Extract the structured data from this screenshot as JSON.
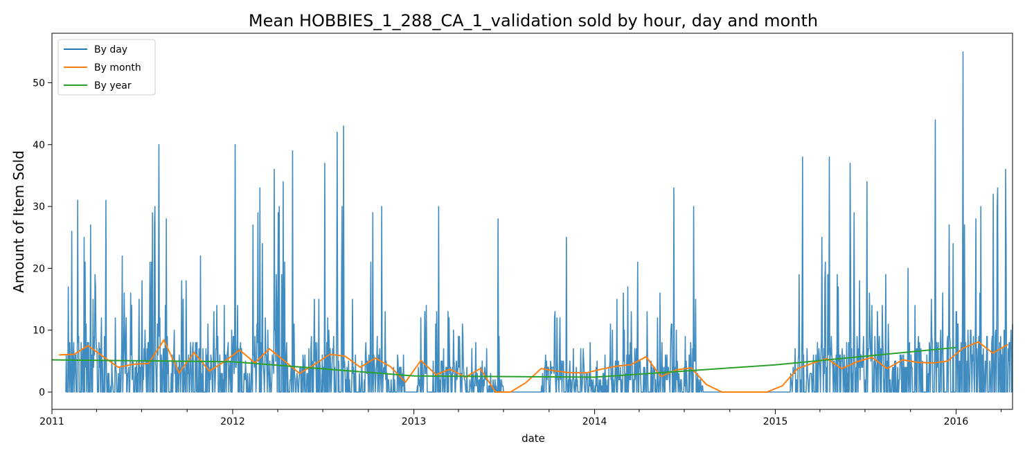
{
  "chart_data": {
    "type": "line",
    "title": "Mean HOBBIES_1_288_CA_1_validation sold by hour, day and month",
    "xlabel": "date",
    "ylabel": "Amount of Item Sold",
    "xlim": [
      "2011-01-01",
      "2016-04-24"
    ],
    "ylim": [
      -2.8,
      58
    ],
    "x_ticks": [
      "2011",
      "2012",
      "2013",
      "2014",
      "2015",
      "2016"
    ],
    "y_ticks": [
      0,
      10,
      20,
      30,
      40,
      50
    ],
    "grid": false,
    "legend": "top-left",
    "series": [
      {
        "name": "By day",
        "color": "#1f77b4",
        "sampling": "daily",
        "x": [
          "2011-01-29",
          "2011-02-15",
          "2011-03-01",
          "2011-03-20",
          "2011-04-10",
          "2011-05-01",
          "2011-05-25",
          "2011-06-20",
          "2011-07-15",
          "2011-08-10",
          "2011-09-05",
          "2011-10-01",
          "2011-10-28",
          "2011-11-25",
          "2011-12-20",
          "2012-01-03",
          "2012-01-25",
          "2012-02-20",
          "2012-03-14",
          "2012-04-05",
          "2012-04-20",
          "2012-05-10",
          "2012-06-05",
          "2012-06-28",
          "2012-07-20",
          "2012-08-03",
          "2012-08-25",
          "2012-09-20",
          "2012-10-12",
          "2012-11-03",
          "2012-11-30",
          "2012-12-10",
          "2013-01-01",
          "2013-01-25",
          "2013-02-20",
          "2013-03-25",
          "2013-04-25",
          "2013-05-20",
          "2013-06-05",
          "2013-06-22",
          "2013-07-15",
          "2013-09-01",
          "2013-09-25",
          "2013-10-20",
          "2013-11-15",
          "2013-12-10",
          "2014-01-05",
          "2014-02-01",
          "2014-03-01",
          "2014-04-01",
          "2014-04-20",
          "2014-05-25",
          "2014-06-25",
          "2014-07-20",
          "2014-08-10",
          "2014-08-25",
          "2014-10-01",
          "2014-12-01",
          "2015-01-30",
          "2015-02-10",
          "2015-03-10",
          "2015-04-01",
          "2015-04-25",
          "2015-05-20",
          "2015-06-10",
          "2015-06-28",
          "2015-07-25",
          "2015-08-20",
          "2015-09-15",
          "2015-10-10",
          "2015-11-05",
          "2015-11-20",
          "2015-12-20",
          "2016-01-05",
          "2016-01-20",
          "2016-02-10",
          "2016-02-25",
          "2016-03-15",
          "2016-04-10",
          "2016-04-24"
        ],
        "y": [
          5,
          6,
          9,
          5,
          8,
          2,
          6,
          4,
          7,
          9,
          4,
          5,
          6,
          3,
          5,
          7,
          4,
          8,
          3,
          9,
          5,
          3,
          7,
          4,
          6,
          8,
          4,
          5,
          6,
          3,
          4,
          2,
          0,
          5,
          3,
          4,
          2,
          3,
          1,
          2,
          0,
          0,
          3,
          4,
          2,
          3,
          1,
          3,
          4,
          5,
          3,
          4,
          2,
          5,
          0,
          0,
          0,
          0,
          0,
          5,
          3,
          6,
          4,
          5,
          7,
          4,
          6,
          5,
          4,
          6,
          5,
          6,
          7,
          9,
          6,
          7,
          5,
          8,
          6,
          10
        ],
        "peaks": [
          {
            "x": "2011-02-10",
            "y": 26
          },
          {
            "x": "2011-03-20",
            "y": 27
          },
          {
            "x": "2011-04-20",
            "y": 31
          },
          {
            "x": "2011-08-05",
            "y": 40
          },
          {
            "x": "2011-08-20",
            "y": 28
          },
          {
            "x": "2012-01-06",
            "y": 40
          },
          {
            "x": "2012-02-25",
            "y": 33
          },
          {
            "x": "2012-03-25",
            "y": 36
          },
          {
            "x": "2012-04-12",
            "y": 34
          },
          {
            "x": "2012-05-01",
            "y": 39
          },
          {
            "x": "2012-07-05",
            "y": 37
          },
          {
            "x": "2012-07-30",
            "y": 42
          },
          {
            "x": "2012-08-12",
            "y": 43
          },
          {
            "x": "2012-10-10",
            "y": 29
          },
          {
            "x": "2012-10-28",
            "y": 30
          },
          {
            "x": "2013-02-20",
            "y": 30
          },
          {
            "x": "2013-06-20",
            "y": 28
          },
          {
            "x": "2013-11-05",
            "y": 25
          },
          {
            "x": "2014-06-10",
            "y": 33
          },
          {
            "x": "2014-07-20",
            "y": 30
          },
          {
            "x": "2015-02-25",
            "y": 38
          },
          {
            "x": "2015-04-20",
            "y": 38
          },
          {
            "x": "2015-06-01",
            "y": 37
          },
          {
            "x": "2015-07-05",
            "y": 34
          },
          {
            "x": "2015-11-20",
            "y": 44
          },
          {
            "x": "2016-01-15",
            "y": 55
          },
          {
            "x": "2016-02-20",
            "y": 30
          },
          {
            "x": "2016-03-25",
            "y": 33
          },
          {
            "x": "2016-04-10",
            "y": 36
          }
        ],
        "zero_periods": [
          {
            "start": "2012-12-20",
            "end": "2013-01-05"
          },
          {
            "start": "2013-07-01",
            "end": "2013-09-15"
          },
          {
            "start": "2014-08-20",
            "end": "2015-01-29"
          }
        ]
      },
      {
        "name": "By month",
        "color": "#ff7f0e",
        "x": [
          "2011-01-15",
          "2011-02-15",
          "2011-03-15",
          "2011-04-15",
          "2011-05-15",
          "2011-06-15",
          "2011-07-15",
          "2011-08-15",
          "2011-09-15",
          "2011-10-15",
          "2011-11-15",
          "2011-12-15",
          "2012-01-15",
          "2012-02-15",
          "2012-03-15",
          "2012-04-15",
          "2012-05-15",
          "2012-06-15",
          "2012-07-15",
          "2012-08-15",
          "2012-09-15",
          "2012-10-15",
          "2012-11-15",
          "2012-12-15",
          "2013-01-15",
          "2013-02-15",
          "2013-03-15",
          "2013-04-15",
          "2013-05-15",
          "2013-06-15",
          "2013-07-15",
          "2013-08-15",
          "2013-09-15",
          "2013-10-15",
          "2013-11-15",
          "2013-12-15",
          "2014-01-15",
          "2014-02-15",
          "2014-03-15",
          "2014-04-15",
          "2014-05-15",
          "2014-06-15",
          "2014-07-15",
          "2014-08-15",
          "2014-09-15",
          "2014-10-15",
          "2014-11-15",
          "2014-12-15",
          "2015-01-15",
          "2015-02-15",
          "2015-03-15",
          "2015-04-15",
          "2015-05-15",
          "2015-06-15",
          "2015-07-15",
          "2015-08-15",
          "2015-09-15",
          "2015-10-15",
          "2015-11-15",
          "2015-12-15",
          "2016-01-15",
          "2016-02-15",
          "2016-03-15",
          "2016-04-15"
        ],
        "y": [
          6.0,
          6.1,
          7.5,
          5.7,
          4.0,
          4.5,
          4.6,
          8.4,
          3.1,
          6.4,
          3.4,
          4.9,
          6.8,
          4.7,
          7.0,
          5.0,
          3.0,
          4.5,
          6.1,
          5.8,
          4.0,
          5.5,
          4.1,
          1.6,
          5.1,
          2.8,
          3.7,
          2.4,
          3.8,
          0.0,
          0.0,
          1.5,
          3.8,
          3.4,
          3.1,
          3.1,
          3.7,
          4.2,
          4.4,
          5.7,
          2.5,
          3.6,
          3.9,
          1.2,
          0.0,
          0.0,
          0.0,
          0.0,
          1.0,
          3.8,
          4.6,
          5.4,
          3.8,
          4.9,
          5.6,
          3.8,
          5.2,
          4.8,
          4.7,
          5.0,
          7.1,
          8.1,
          6.3,
          7.7
        ]
      },
      {
        "name": "By year",
        "color": "#2ca02c",
        "x": [
          "2011-01-01",
          "2012-01-01",
          "2013-01-01",
          "2014-01-01",
          "2015-01-01",
          "2016-01-01"
        ],
        "y": [
          5.2,
          4.9,
          2.6,
          2.4,
          4.4,
          7.2
        ]
      }
    ]
  }
}
